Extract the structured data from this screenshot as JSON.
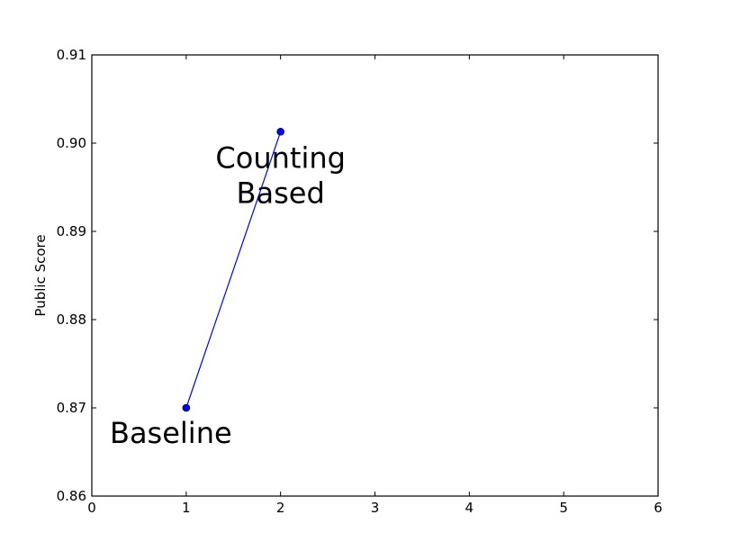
{
  "chart_data": {
    "type": "line",
    "title": "",
    "xlabel": "",
    "ylabel": "Public Score",
    "xlim": [
      0,
      6
    ],
    "ylim": [
      0.86,
      0.91
    ],
    "x_ticks": [
      "0",
      "1",
      "2",
      "3",
      "4",
      "5",
      "6"
    ],
    "y_ticks": [
      "0.86",
      "0.87",
      "0.88",
      "0.89",
      "0.90",
      "0.91"
    ],
    "grid": false,
    "series": [
      {
        "color": "#0000ff",
        "points": [
          {
            "x": 1,
            "y": 0.87
          },
          {
            "x": 2,
            "y": 0.9013
          }
        ]
      }
    ],
    "annotations": [
      {
        "lines": [
          "Baseline"
        ],
        "x": 1,
        "y": 0.87
      },
      {
        "lines": [
          "Counting",
          "Based"
        ],
        "x": 2,
        "y": 0.9013
      }
    ]
  }
}
